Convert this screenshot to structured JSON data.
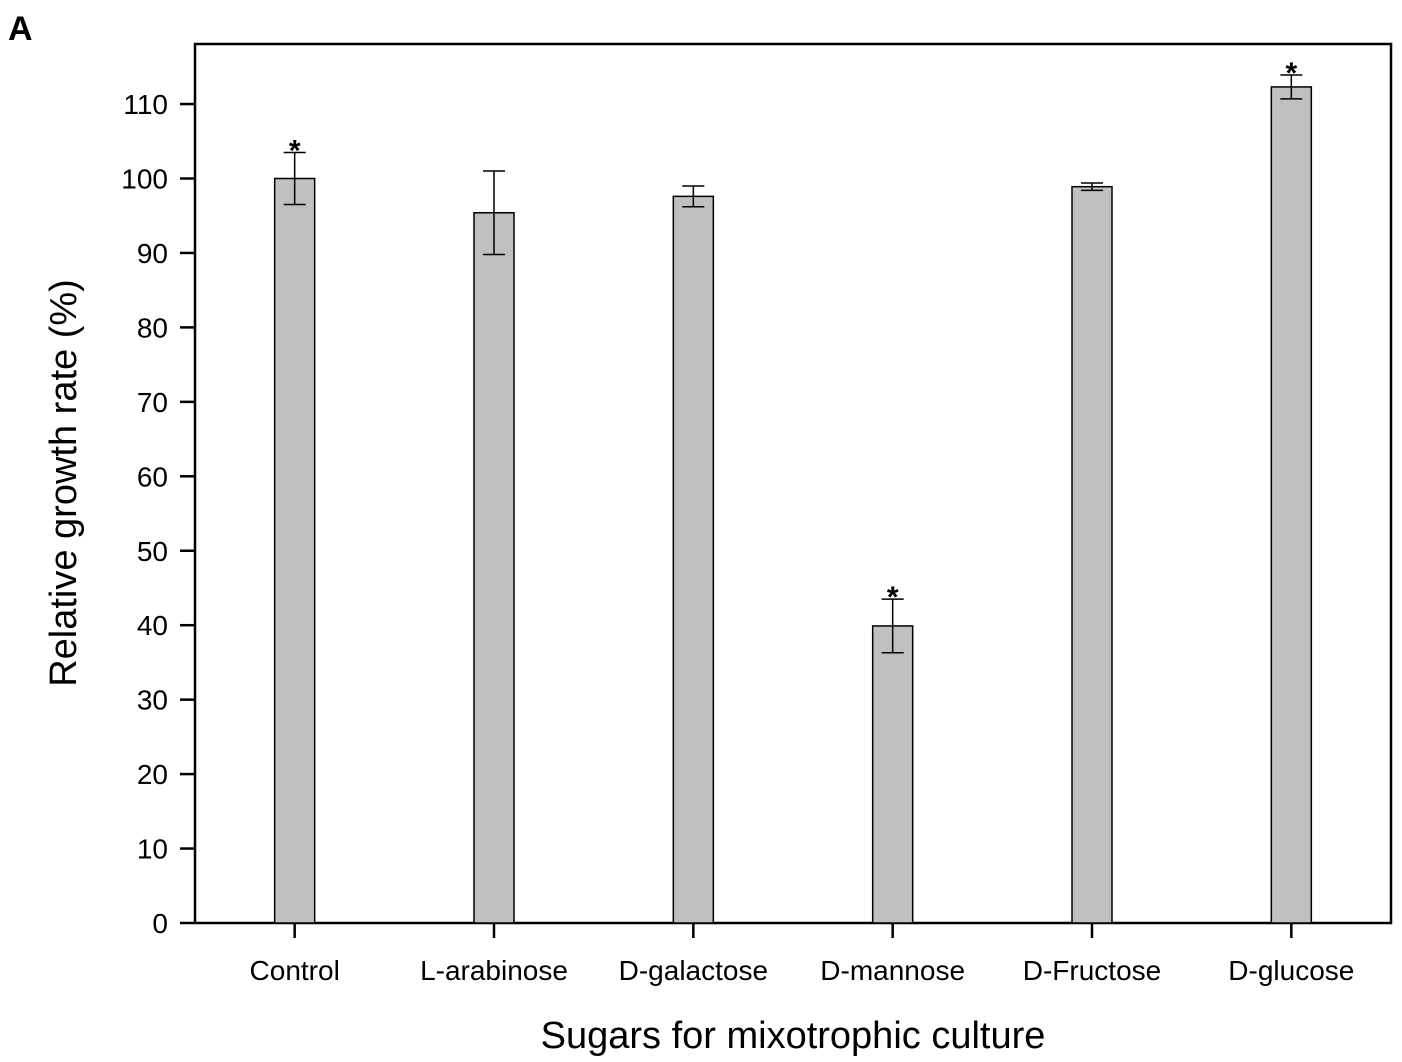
{
  "panel_label": "A",
  "chart_data": {
    "type": "bar",
    "title": "",
    "xlabel": "Sugars for mixotrophic culture",
    "ylabel": "Relative growth rate (%)",
    "ylim": [
      0,
      118
    ],
    "yticks": [
      0,
      10,
      20,
      30,
      40,
      50,
      60,
      70,
      80,
      90,
      100,
      110
    ],
    "categories": [
      "Control",
      "L-arabinose",
      "D-galactose",
      "D-mannose",
      "D-Fructose",
      "D-glucose"
    ],
    "values": [
      100,
      95.4,
      97.6,
      39.9,
      98.9,
      112.3
    ],
    "errors": [
      3.5,
      5.6,
      1.4,
      3.6,
      0.5,
      1.6
    ],
    "significance": [
      "*",
      "",
      "",
      "*",
      "",
      "*"
    ],
    "bar_color": "#c0c0c0",
    "grid": false,
    "legend": "none"
  }
}
